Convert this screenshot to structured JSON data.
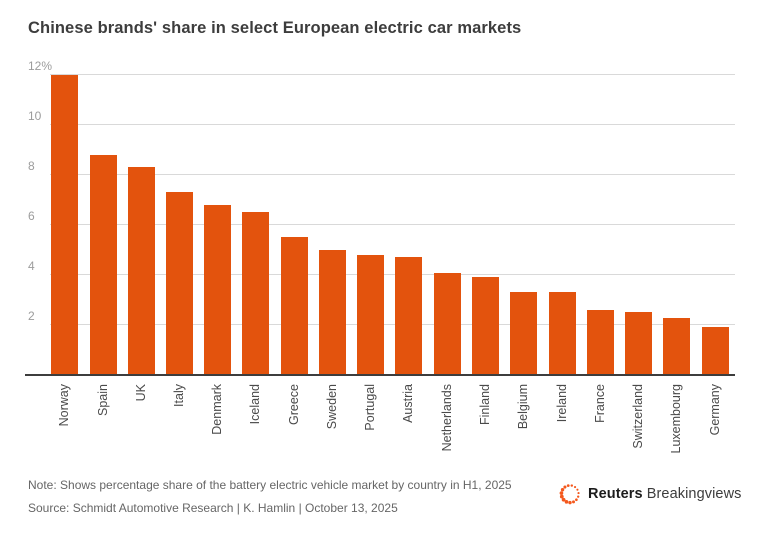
{
  "title": "Chinese brands' share in select European electric car markets",
  "note": "Note: Shows percentage share of the battery electric vehicle market by country in H1, 2025",
  "source": "Source: Schmidt Automotive Research | K. Hamlin | October 13, 2025",
  "logo": {
    "brand": "Reuters",
    "product": "Breakingviews"
  },
  "colors": {
    "bar": "#E3530D",
    "axis": "#3d3d3d",
    "grid": "#d9d9d9",
    "ytick_text": "#9c9c9c",
    "xtick_text": "#4a4a4a",
    "title_text": "#3d3d3d",
    "footer_text": "#666666",
    "logo_dots": "#F4581D"
  },
  "chart_data": {
    "type": "bar",
    "title": "Chinese brands' share in select European electric car markets",
    "categories": [
      "Norway",
      "Spain",
      "UK",
      "Italy",
      "Denmark",
      "Iceland",
      "Greece",
      "Sweden",
      "Portugal",
      "Austria",
      "Netherlands",
      "Finland",
      "Belgium",
      "Ireland",
      "France",
      "Switzerland",
      "Luxembourg",
      "Germany"
    ],
    "values": [
      12.0,
      8.8,
      8.3,
      7.3,
      6.8,
      6.5,
      5.5,
      5.0,
      4.8,
      4.7,
      4.1,
      3.9,
      3.3,
      3.3,
      2.6,
      2.5,
      2.3,
      1.9
    ],
    "unit": "%",
    "xlabel": "",
    "ylabel": "",
    "ylim": [
      0,
      12.4
    ],
    "ytick_values": [
      2,
      4,
      6,
      8,
      10,
      12
    ],
    "ytick_labels": [
      "2",
      "4",
      "6",
      "8",
      "10",
      "12%"
    ],
    "grid": "horizontal",
    "legend": "none",
    "bar_orientation": "vertical",
    "xtick_rotation": "vertical"
  }
}
